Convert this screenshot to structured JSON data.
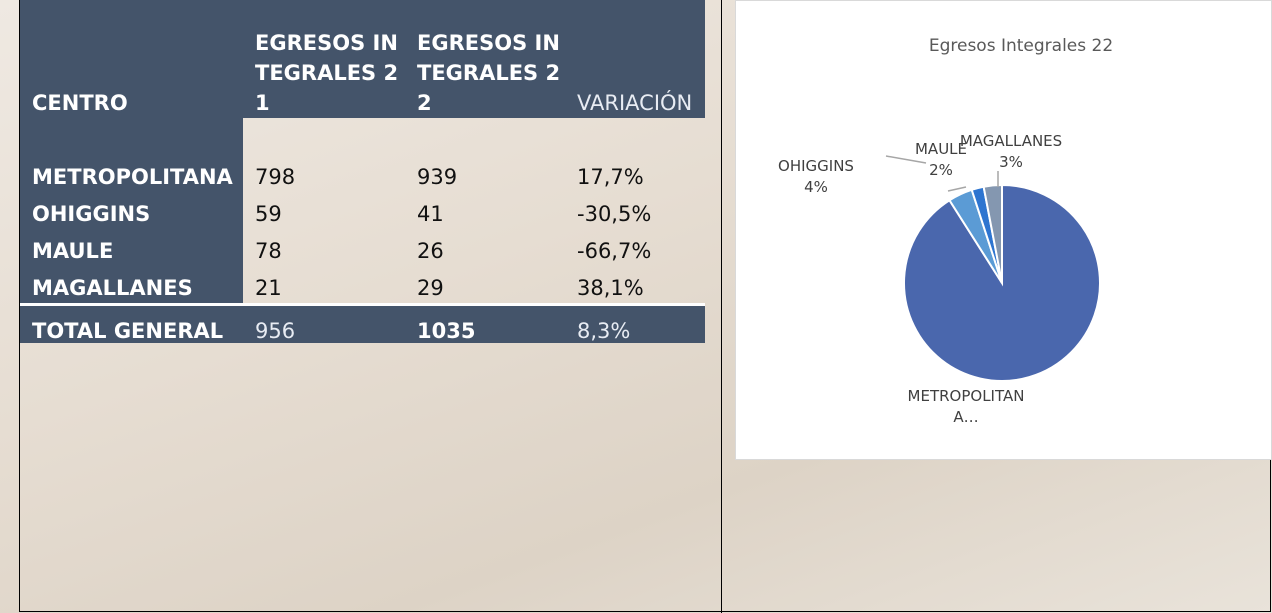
{
  "table": {
    "header": [
      "CENTRO",
      "EGRESOS INTEGRALES 21",
      "EGRESOS INTEGRALES 22",
      "VARIACIÓN"
    ],
    "rows": [
      [
        "METROPOLITANA",
        "798",
        "939",
        "17,7%"
      ],
      [
        "OHIGGINS",
        "59",
        "41",
        "-30,5%"
      ],
      [
        "MAULE",
        "78",
        "26",
        "-66,7%"
      ],
      [
        "MAGALLANES",
        "21",
        "29",
        "38,1%"
      ]
    ],
    "total": [
      "TOTAL GENERAL",
      "956",
      "1035",
      "8,3%"
    ]
  },
  "chart_data": {
    "type": "pie",
    "title": "Egresos Integrales 22",
    "categories": [
      "METROPOLITANA…",
      "OHIGGINS",
      "MAULE",
      "MAGALLANES"
    ],
    "values": [
      91,
      4,
      2,
      3
    ],
    "value_labels": [
      null,
      "4%",
      "2%",
      "3%"
    ],
    "colors": [
      "#4a67ad",
      "#5b9bd5",
      "#2e75d0",
      "#8497b0"
    ]
  }
}
